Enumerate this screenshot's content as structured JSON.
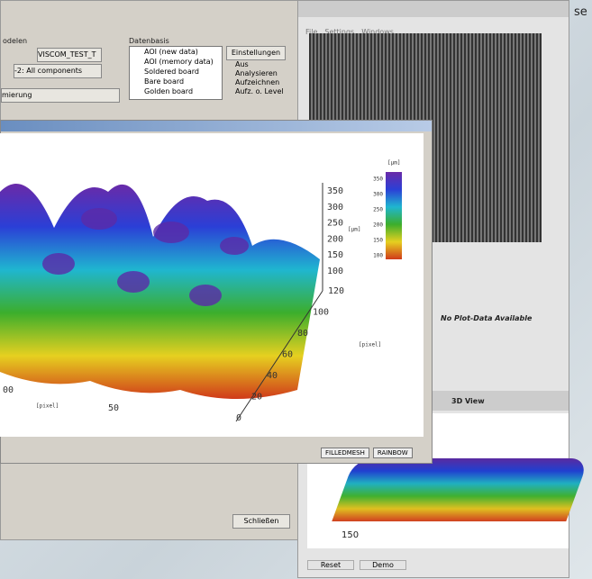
{
  "corner_text": "se",
  "left_window": {
    "model_label": "odelen",
    "model_value": "VISCOM_TEST_T",
    "components": "-2: All components",
    "optimization": "mierung",
    "database_title": "Datenbasis",
    "database_items": [
      "AOI (new data)",
      "AOI (memory data)",
      "Soldered board",
      "Bare board",
      "Golden board"
    ],
    "settings_button": "Einstellungen",
    "mode_options": [
      "Aus",
      "Analysieren",
      "Aufzeichnen",
      "Aufz. o. Level"
    ],
    "close_button": "Schließen"
  },
  "right_window": {
    "menu": [
      "File",
      "Settings",
      "Windows"
    ],
    "no_data": "No Plot-Data Available",
    "view_title": "3D View",
    "axis_label": "150",
    "buttons": [
      "Reset",
      "Demo"
    ]
  },
  "plot_window": {
    "z_ticks": [
      "350",
      "300",
      "250",
      "200",
      "150",
      "100"
    ],
    "z_unit": "[µm]",
    "y_ticks": [
      "120",
      "100",
      "80",
      "60",
      "40",
      "20",
      "0"
    ],
    "y_unit": "[pixel]",
    "x_ticks": [
      "00",
      "50"
    ],
    "x_unit": "[pixel]",
    "colorbar_unit": "[µm]",
    "colorbar_ticks": [
      "350",
      "300",
      "250",
      "200",
      "150",
      "100"
    ],
    "dropdowns": [
      "FILLEDMESH",
      "RAINBOW"
    ]
  }
}
